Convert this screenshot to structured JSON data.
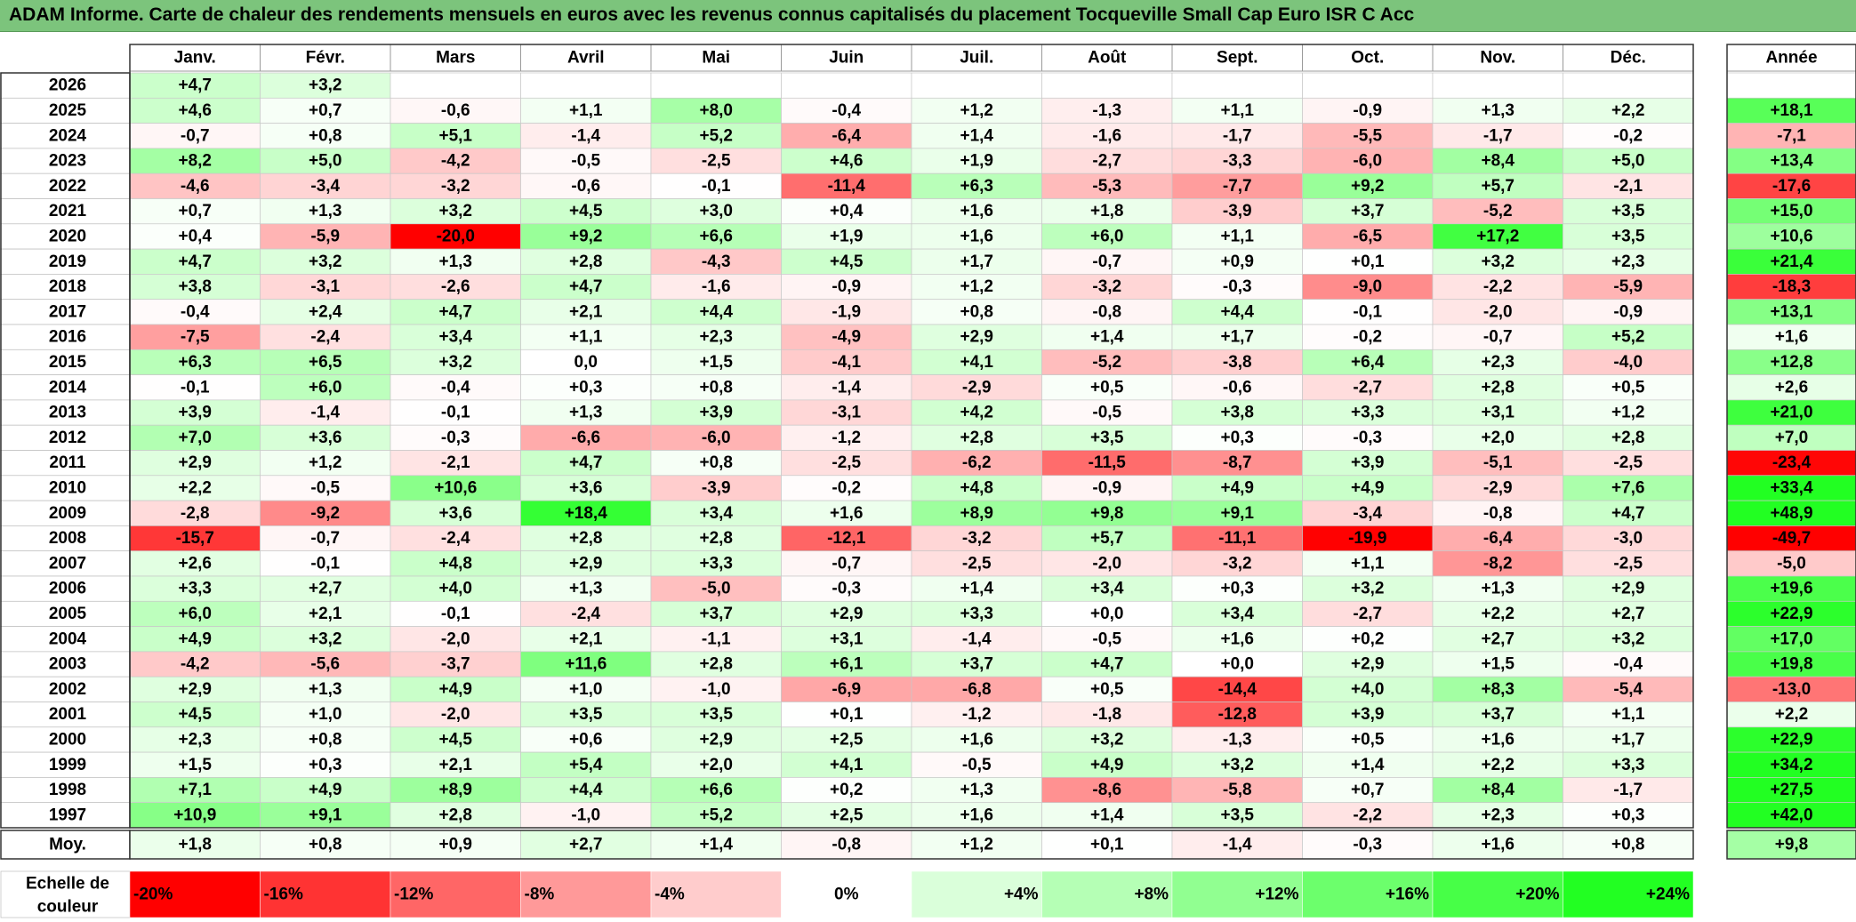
{
  "title": "ADAM Informe. Carte de chaleur des rendements mensuels en euros avec les revenus connus capitalisés du placement Tocqueville Small Cap Euro ISR C Acc",
  "chart_data": {
    "type": "heatmap",
    "months": [
      "Janv.",
      "Févr.",
      "Mars",
      "Avril",
      "Mai",
      "Juin",
      "Juil.",
      "Août",
      "Sept.",
      "Oct.",
      "Nov.",
      "Déc."
    ],
    "year_header": "Année",
    "rows": [
      {
        "year": "2026",
        "values": [
          "+4,7",
          "+3,2",
          "",
          "",
          "",
          "",
          "",
          "",
          "",
          "",
          "",
          ""
        ],
        "annual": ""
      },
      {
        "year": "2025",
        "values": [
          "+4,6",
          "+0,7",
          "-0,6",
          "+1,1",
          "+8,0",
          "-0,4",
          "+1,2",
          "-1,3",
          "+1,1",
          "-0,9",
          "+1,3",
          "+2,2"
        ],
        "annual": "+18,1"
      },
      {
        "year": "2024",
        "values": [
          "-0,7",
          "+0,8",
          "+5,1",
          "-1,4",
          "+5,2",
          "-6,4",
          "+1,4",
          "-1,6",
          "-1,7",
          "-5,5",
          "-1,7",
          "-0,2"
        ],
        "annual": "-7,1"
      },
      {
        "year": "2023",
        "values": [
          "+8,2",
          "+5,0",
          "-4,2",
          "-0,5",
          "-2,5",
          "+4,6",
          "+1,9",
          "-2,7",
          "-3,3",
          "-6,0",
          "+8,4",
          "+5,0"
        ],
        "annual": "+13,4"
      },
      {
        "year": "2022",
        "values": [
          "-4,6",
          "-3,4",
          "-3,2",
          "-0,6",
          "-0,1",
          "-11,4",
          "+6,3",
          "-5,3",
          "-7,7",
          "+9,2",
          "+5,7",
          "-2,1"
        ],
        "annual": "-17,6"
      },
      {
        "year": "2021",
        "values": [
          "+0,7",
          "+1,3",
          "+3,2",
          "+4,5",
          "+3,0",
          "+0,4",
          "+1,6",
          "+1,8",
          "-3,9",
          "+3,7",
          "-5,2",
          "+3,5"
        ],
        "annual": "+15,0"
      },
      {
        "year": "2020",
        "values": [
          "+0,4",
          "-5,9",
          "-20,0",
          "+9,2",
          "+6,6",
          "+1,9",
          "+1,6",
          "+6,0",
          "+1,1",
          "-6,5",
          "+17,2",
          "+3,5"
        ],
        "annual": "+10,6"
      },
      {
        "year": "2019",
        "values": [
          "+4,7",
          "+3,2",
          "+1,3",
          "+2,8",
          "-4,3",
          "+4,5",
          "+1,7",
          "-0,7",
          "+0,9",
          "+0,1",
          "+3,2",
          "+2,3"
        ],
        "annual": "+21,4"
      },
      {
        "year": "2018",
        "values": [
          "+3,8",
          "-3,1",
          "-2,6",
          "+4,7",
          "-1,6",
          "-0,9",
          "+1,2",
          "-3,2",
          "-0,3",
          "-9,0",
          "-2,2",
          "-5,9"
        ],
        "annual": "-18,3"
      },
      {
        "year": "2017",
        "values": [
          "-0,4",
          "+2,4",
          "+4,7",
          "+2,1",
          "+4,4",
          "-1,9",
          "+0,8",
          "-0,8",
          "+4,4",
          "-0,1",
          "-2,0",
          "-0,9"
        ],
        "annual": "+13,1"
      },
      {
        "year": "2016",
        "values": [
          "-7,5",
          "-2,4",
          "+3,4",
          "+1,1",
          "+2,3",
          "-4,9",
          "+2,9",
          "+1,4",
          "+1,7",
          "-0,2",
          "-0,7",
          "+5,2"
        ],
        "annual": "+1,6"
      },
      {
        "year": "2015",
        "values": [
          "+6,3",
          "+6,5",
          "+3,2",
          "0,0",
          "+1,5",
          "-4,1",
          "+4,1",
          "-5,2",
          "-3,8",
          "+6,4",
          "+2,3",
          "-4,0"
        ],
        "annual": "+12,8"
      },
      {
        "year": "2014",
        "values": [
          "-0,1",
          "+6,0",
          "-0,4",
          "+0,3",
          "+0,8",
          "-1,4",
          "-2,9",
          "+0,5",
          "-0,6",
          "-2,7",
          "+2,8",
          "+0,5"
        ],
        "annual": "+2,6"
      },
      {
        "year": "2013",
        "values": [
          "+3,9",
          "-1,4",
          "-0,1",
          "+1,3",
          "+3,9",
          "-3,1",
          "+4,2",
          "-0,5",
          "+3,8",
          "+3,3",
          "+3,1",
          "+1,2"
        ],
        "annual": "+21,0"
      },
      {
        "year": "2012",
        "values": [
          "+7,0",
          "+3,6",
          "-0,3",
          "-6,6",
          "-6,0",
          "-1,2",
          "+2,8",
          "+3,5",
          "+0,3",
          "-0,3",
          "+2,0",
          "+2,8"
        ],
        "annual": "+7,0"
      },
      {
        "year": "2011",
        "values": [
          "+2,9",
          "+1,2",
          "-2,1",
          "+4,7",
          "+0,8",
          "-2,5",
          "-6,2",
          "-11,5",
          "-8,7",
          "+3,9",
          "-5,1",
          "-2,5"
        ],
        "annual": "-23,4"
      },
      {
        "year": "2010",
        "values": [
          "+2,2",
          "-0,5",
          "+10,6",
          "+3,6",
          "-3,9",
          "-0,2",
          "+4,8",
          "-0,9",
          "+4,9",
          "+4,9",
          "-2,9",
          "+7,6"
        ],
        "annual": "+33,4"
      },
      {
        "year": "2009",
        "values": [
          "-2,8",
          "-9,2",
          "+3,6",
          "+18,4",
          "+3,4",
          "+1,6",
          "+8,9",
          "+9,8",
          "+9,1",
          "-3,4",
          "-0,8",
          "+4,7"
        ],
        "annual": "+48,9"
      },
      {
        "year": "2008",
        "values": [
          "-15,7",
          "-0,7",
          "-2,4",
          "+2,8",
          "+2,8",
          "-12,1",
          "-3,2",
          "+5,7",
          "-11,1",
          "-19,9",
          "-6,4",
          "-3,0"
        ],
        "annual": "-49,7"
      },
      {
        "year": "2007",
        "values": [
          "+2,6",
          "-0,1",
          "+4,8",
          "+2,9",
          "+3,3",
          "-0,7",
          "-2,5",
          "-2,0",
          "-3,2",
          "+1,1",
          "-8,2",
          "-2,5"
        ],
        "annual": "-5,0"
      },
      {
        "year": "2006",
        "values": [
          "+3,3",
          "+2,7",
          "+4,0",
          "+1,3",
          "-5,0",
          "-0,3",
          "+1,4",
          "+3,4",
          "+0,3",
          "+3,2",
          "+1,3",
          "+2,9"
        ],
        "annual": "+19,6"
      },
      {
        "year": "2005",
        "values": [
          "+6,0",
          "+2,1",
          "-0,1",
          "-2,4",
          "+3,7",
          "+2,9",
          "+3,3",
          "+0,0",
          "+3,4",
          "-2,7",
          "+2,2",
          "+2,7"
        ],
        "annual": "+22,9"
      },
      {
        "year": "2004",
        "values": [
          "+4,9",
          "+3,2",
          "-2,0",
          "+2,1",
          "-1,1",
          "+3,1",
          "-1,4",
          "-0,5",
          "+1,6",
          "+0,2",
          "+2,7",
          "+3,2"
        ],
        "annual": "+17,0"
      },
      {
        "year": "2003",
        "values": [
          "-4,2",
          "-5,6",
          "-3,7",
          "+11,6",
          "+2,8",
          "+6,1",
          "+3,7",
          "+4,7",
          "+0,0",
          "+2,9",
          "+1,5",
          "-0,4"
        ],
        "annual": "+19,8"
      },
      {
        "year": "2002",
        "values": [
          "+2,9",
          "+1,3",
          "+4,9",
          "+1,0",
          "-1,0",
          "-6,9",
          "-6,8",
          "+0,5",
          "-14,4",
          "+4,0",
          "+8,3",
          "-5,4"
        ],
        "annual": "-13,0"
      },
      {
        "year": "2001",
        "values": [
          "+4,5",
          "+1,0",
          "-2,0",
          "+3,5",
          "+3,5",
          "+0,1",
          "-1,2",
          "-1,8",
          "-12,8",
          "+3,9",
          "+3,7",
          "+1,1"
        ],
        "annual": "+2,2"
      },
      {
        "year": "2000",
        "values": [
          "+2,3",
          "+0,8",
          "+4,5",
          "+0,6",
          "+2,9",
          "+2,5",
          "+1,6",
          "+3,2",
          "-1,3",
          "+0,5",
          "+1,6",
          "+1,7"
        ],
        "annual": "+22,9"
      },
      {
        "year": "1999",
        "values": [
          "+1,5",
          "+0,3",
          "+2,1",
          "+5,4",
          "+2,0",
          "+4,1",
          "-0,5",
          "+4,9",
          "+3,2",
          "+1,4",
          "+2,2",
          "+3,3"
        ],
        "annual": "+34,2"
      },
      {
        "year": "1998",
        "values": [
          "+7,1",
          "+4,9",
          "+8,9",
          "+4,4",
          "+6,6",
          "+0,2",
          "+1,3",
          "-8,6",
          "-5,8",
          "+0,7",
          "+8,4",
          "-1,7"
        ],
        "annual": "+27,5"
      },
      {
        "year": "1997",
        "values": [
          "+10,9",
          "+9,1",
          "+2,8",
          "-1,0",
          "+5,2",
          "+2,5",
          "+1,6",
          "+1,4",
          "+3,5",
          "-2,2",
          "+2,3",
          "+0,3"
        ],
        "annual": "+42,0"
      }
    ],
    "average": {
      "label": "Moy.",
      "values": [
        "+1,8",
        "+0,8",
        "+0,9",
        "+2,7",
        "+1,4",
        "-0,8",
        "+1,2",
        "+0,1",
        "-1,4",
        "-0,3",
        "+1,6",
        "+0,8"
      ],
      "annual": "+9,8"
    },
    "color_scale": {
      "label_line1": "Echelle de",
      "label_line2": "couleur",
      "stops": [
        {
          "label": "-20%",
          "value": -20
        },
        {
          "label": "-16%",
          "value": -16
        },
        {
          "label": "-12%",
          "value": -12
        },
        {
          "label": "-8%",
          "value": -8
        },
        {
          "label": "-4%",
          "value": -4
        },
        {
          "label": "0%",
          "value": 0
        },
        {
          "label": "+4%",
          "value": 4
        },
        {
          "label": "+8%",
          "value": 8
        },
        {
          "label": "+12%",
          "value": 12
        },
        {
          "label": "+16%",
          "value": 16
        },
        {
          "label": "+20%",
          "value": 20
        },
        {
          "label": "+24%",
          "value": 24
        }
      ]
    },
    "colors": {
      "negative_max": "#ff0000",
      "zero": "#ffffff",
      "positive_max": "#22ff22",
      "title_bar": "#7cc47c"
    }
  }
}
